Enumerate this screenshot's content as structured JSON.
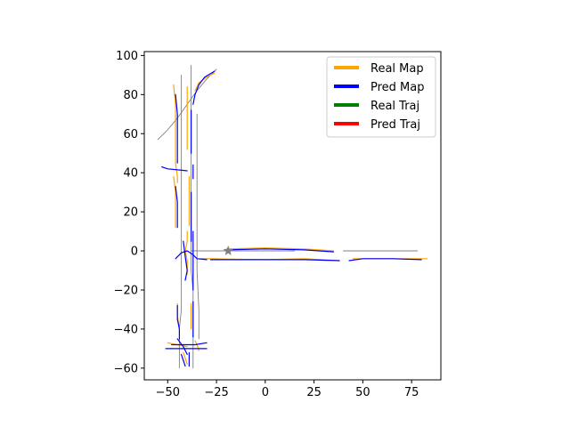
{
  "chart_data": {
    "type": "line",
    "title": "",
    "xlabel": "",
    "ylabel": "",
    "xlim": [
      -62,
      90
    ],
    "ylim": [
      -66,
      102
    ],
    "xticks": [
      -50,
      -25,
      0,
      25,
      50,
      75
    ],
    "yticks": [
      -60,
      -40,
      -20,
      0,
      20,
      40,
      60,
      80,
      100
    ],
    "grid": false,
    "legend_position": "top-right",
    "legend": [
      {
        "label": "Real Map",
        "color": "#ffa500"
      },
      {
        "label": "Pred Map",
        "color": "#0000ff"
      },
      {
        "label": "Real Traj",
        "color": "#008000"
      },
      {
        "label": "Pred Traj",
        "color": "#ff0000"
      }
    ],
    "marker": {
      "name": "ego-position",
      "x": -19,
      "y": 0,
      "color": "#808080"
    },
    "series": [
      {
        "kind": "centerline",
        "color": "#808080",
        "points": [
          [
            -44,
            -60
          ],
          [
            -44,
            -50
          ],
          [
            -44,
            -40
          ],
          [
            -43,
            -30
          ],
          [
            -43,
            -20
          ],
          [
            -43,
            -10
          ],
          [
            -43,
            0
          ],
          [
            -43,
            10
          ],
          [
            -43,
            20
          ],
          [
            -43,
            30
          ],
          [
            -43,
            40
          ],
          [
            -43,
            50
          ],
          [
            -43,
            60
          ],
          [
            -43,
            80
          ],
          [
            -43,
            90
          ]
        ]
      },
      {
        "kind": "centerline",
        "color": "#808080",
        "points": [
          [
            -37,
            -60
          ],
          [
            -37,
            -50
          ],
          [
            -37,
            -40
          ],
          [
            -37,
            -30
          ],
          [
            -37,
            -20
          ],
          [
            -38,
            -10
          ],
          [
            -38,
            0
          ],
          [
            -38,
            10
          ],
          [
            -38,
            20
          ],
          [
            -38,
            30
          ],
          [
            -38,
            40
          ],
          [
            -38,
            50
          ],
          [
            -38,
            60
          ],
          [
            -38,
            80
          ],
          [
            -38,
            95
          ]
        ]
      },
      {
        "kind": "centerline",
        "color": "#808080",
        "points": [
          [
            -34,
            -45
          ],
          [
            -34,
            -30
          ],
          [
            -35,
            -10
          ],
          [
            -35,
            10
          ],
          [
            -35,
            30
          ],
          [
            -35,
            50
          ],
          [
            -35,
            70
          ]
        ]
      },
      {
        "kind": "centerline",
        "color": "#808080",
        "points": [
          [
            -55,
            57
          ],
          [
            -50,
            62
          ],
          [
            -45,
            68
          ],
          [
            -40,
            75
          ],
          [
            -35,
            82
          ],
          [
            -30,
            88
          ],
          [
            -25,
            93
          ]
        ]
      },
      {
        "kind": "centerline",
        "color": "#808080",
        "points": [
          [
            -38,
            0
          ],
          [
            -20,
            0
          ],
          [
            0,
            0
          ],
          [
            15,
            0
          ]
        ]
      },
      {
        "kind": "centerline",
        "color": "#808080",
        "points": [
          [
            -34,
            -4
          ],
          [
            -24,
            -4
          ]
        ]
      },
      {
        "kind": "centerline",
        "color": "#808080",
        "points": [
          [
            40,
            0
          ],
          [
            60,
            0
          ],
          [
            78,
            0
          ]
        ]
      },
      {
        "kind": "real_map",
        "color": "#ffa500",
        "points": [
          [
            -47,
            85
          ],
          [
            -46,
            75
          ],
          [
            -46,
            65
          ],
          [
            -46,
            55
          ],
          [
            -46,
            45
          ],
          [
            -45,
            38
          ],
          [
            -45,
            35
          ]
        ]
      },
      {
        "kind": "real_map",
        "color": "#ffa500",
        "points": [
          [
            -40,
            84
          ],
          [
            -40,
            70
          ],
          [
            -40,
            60
          ],
          [
            -40,
            52
          ]
        ]
      },
      {
        "kind": "real_map",
        "color": "#ffa500",
        "points": [
          [
            -36,
            82
          ],
          [
            -34,
            86
          ],
          [
            -30,
            89
          ],
          [
            -26,
            91
          ]
        ]
      },
      {
        "kind": "real_map",
        "color": "#ffa500",
        "points": [
          [
            -47,
            38
          ],
          [
            -46,
            30
          ],
          [
            -46,
            20
          ],
          [
            -46,
            12
          ]
        ]
      },
      {
        "kind": "real_map",
        "color": "#ffa500",
        "points": [
          [
            -39,
            38
          ],
          [
            -39,
            30
          ],
          [
            -39,
            20
          ],
          [
            -39,
            13
          ]
        ]
      },
      {
        "kind": "real_map",
        "color": "#ffa500",
        "points": [
          [
            -40,
            10
          ],
          [
            -40,
            5
          ],
          [
            -41,
            0
          ],
          [
            -40,
            -5
          ],
          [
            -40,
            -12
          ]
        ]
      },
      {
        "kind": "real_map",
        "color": "#ffa500",
        "points": [
          [
            -20,
            1
          ],
          [
            0,
            1.5
          ],
          [
            20,
            1
          ],
          [
            35,
            0
          ]
        ]
      },
      {
        "kind": "real_map",
        "color": "#ffa500",
        "points": [
          [
            -30,
            -4
          ],
          [
            0,
            -4.5
          ],
          [
            20,
            -4
          ],
          [
            38,
            -5
          ]
        ]
      },
      {
        "kind": "real_map",
        "color": "#ffa500",
        "points": [
          [
            45,
            -4
          ],
          [
            65,
            -4
          ],
          [
            83,
            -4
          ]
        ]
      },
      {
        "kind": "real_map",
        "color": "#ffa500",
        "points": [
          [
            -45,
            -27
          ],
          [
            -45,
            -33
          ],
          [
            -44,
            -40
          ]
        ]
      },
      {
        "kind": "real_map",
        "color": "#ffa500",
        "points": [
          [
            -38,
            -27
          ],
          [
            -38,
            -33
          ],
          [
            -38,
            -40
          ]
        ]
      },
      {
        "kind": "real_map",
        "color": "#ffa500",
        "points": [
          [
            -50,
            -47
          ],
          [
            -45,
            -48
          ],
          [
            -40,
            -49
          ]
        ]
      },
      {
        "kind": "real_map",
        "color": "#ffa500",
        "points": [
          [
            -36,
            -46
          ],
          [
            -35,
            -48
          ],
          [
            -34,
            -51
          ]
        ]
      },
      {
        "kind": "real_map",
        "color": "#ffa500",
        "points": [
          [
            -42,
            -52
          ],
          [
            -41,
            -55
          ],
          [
            -40,
            -58
          ]
        ]
      },
      {
        "kind": "pred_map",
        "color": "#0000ff",
        "points": [
          [
            -46,
            80
          ],
          [
            -45,
            70
          ],
          [
            -45,
            60
          ],
          [
            -45,
            50
          ],
          [
            -45,
            45
          ]
        ]
      },
      {
        "kind": "pred_map",
        "color": "#0000ff",
        "points": [
          [
            -38,
            72
          ],
          [
            -38,
            60
          ],
          [
            -38,
            50
          ]
        ]
      },
      {
        "kind": "pred_map",
        "color": "#0000ff",
        "points": [
          [
            -37,
            75
          ],
          [
            -36,
            80
          ],
          [
            -34,
            85
          ],
          [
            -31,
            89
          ],
          [
            -26,
            92
          ]
        ]
      },
      {
        "kind": "pred_map",
        "color": "#0000ff",
        "points": [
          [
            -53,
            43
          ],
          [
            -50,
            42
          ],
          [
            -45,
            41.5
          ],
          [
            -40,
            41
          ]
        ]
      },
      {
        "kind": "pred_map",
        "color": "#0000ff",
        "points": [
          [
            -37,
            44
          ],
          [
            -37,
            40
          ],
          [
            -37,
            37
          ]
        ]
      },
      {
        "kind": "pred_map",
        "color": "#0000ff",
        "points": [
          [
            -46,
            33
          ],
          [
            -45,
            25
          ],
          [
            -45,
            15
          ],
          [
            -45,
            12
          ]
        ]
      },
      {
        "kind": "pred_map",
        "color": "#0000ff",
        "points": [
          [
            -38,
            30
          ],
          [
            -38,
            20
          ],
          [
            -38,
            10
          ],
          [
            -38,
            5
          ]
        ]
      },
      {
        "kind": "pred_map",
        "color": "#0000ff",
        "points": [
          [
            -46,
            -4
          ],
          [
            -43,
            -1
          ],
          [
            -40,
            0
          ],
          [
            -37,
            -2
          ],
          [
            -35,
            -4
          ],
          [
            -30,
            -4.5
          ]
        ]
      },
      {
        "kind": "pred_map",
        "color": "#0000ff",
        "points": [
          [
            -42,
            5
          ],
          [
            -41,
            -3
          ],
          [
            -40,
            -10
          ],
          [
            -41,
            -15
          ]
        ]
      },
      {
        "kind": "pred_map",
        "color": "#0000ff",
        "points": [
          [
            -37,
            10
          ],
          [
            -37,
            0
          ],
          [
            -37,
            -10
          ],
          [
            -37,
            -20
          ]
        ]
      },
      {
        "kind": "pred_map",
        "color": "#0000ff",
        "points": [
          [
            -20,
            0.5
          ],
          [
            0,
            1
          ],
          [
            20,
            0.5
          ],
          [
            35,
            -0.5
          ]
        ]
      },
      {
        "kind": "pred_map",
        "color": "#0000ff",
        "points": [
          [
            -28,
            -4.5
          ],
          [
            0,
            -4.5
          ],
          [
            20,
            -4.5
          ],
          [
            38,
            -5
          ]
        ]
      },
      {
        "kind": "pred_map",
        "color": "#0000ff",
        "points": [
          [
            43,
            -5
          ],
          [
            50,
            -4
          ],
          [
            65,
            -4
          ],
          [
            80,
            -4.5
          ]
        ]
      },
      {
        "kind": "pred_map",
        "color": "#0000ff",
        "points": [
          [
            -45,
            -28
          ],
          [
            -45,
            -35
          ],
          [
            -44,
            -40
          ],
          [
            -44,
            -45
          ]
        ]
      },
      {
        "kind": "pred_map",
        "color": "#0000ff",
        "points": [
          [
            -37,
            -26
          ],
          [
            -37,
            -35
          ],
          [
            -37,
            -44
          ]
        ]
      },
      {
        "kind": "pred_map",
        "color": "#0000ff",
        "points": [
          [
            -51,
            -50
          ],
          [
            -45,
            -50
          ],
          [
            -38,
            -50
          ],
          [
            -30,
            -50
          ]
        ]
      },
      {
        "kind": "pred_map",
        "color": "#0000ff",
        "points": [
          [
            -48,
            -48
          ],
          [
            -42,
            -48
          ],
          [
            -36,
            -48
          ],
          [
            -30,
            -47
          ]
        ]
      },
      {
        "kind": "pred_map",
        "color": "#0000ff",
        "points": [
          [
            -43,
            -53
          ],
          [
            -42,
            -56
          ],
          [
            -41,
            -59
          ]
        ]
      },
      {
        "kind": "pred_map",
        "color": "#0000ff",
        "points": [
          [
            -39,
            -52
          ],
          [
            -39,
            -56
          ],
          [
            -39,
            -59
          ]
        ]
      },
      {
        "kind": "pred_map",
        "color": "#0000ff",
        "points": [
          [
            -45,
            -45
          ],
          [
            -42,
            -49
          ],
          [
            -40,
            -53
          ]
        ]
      }
    ]
  }
}
